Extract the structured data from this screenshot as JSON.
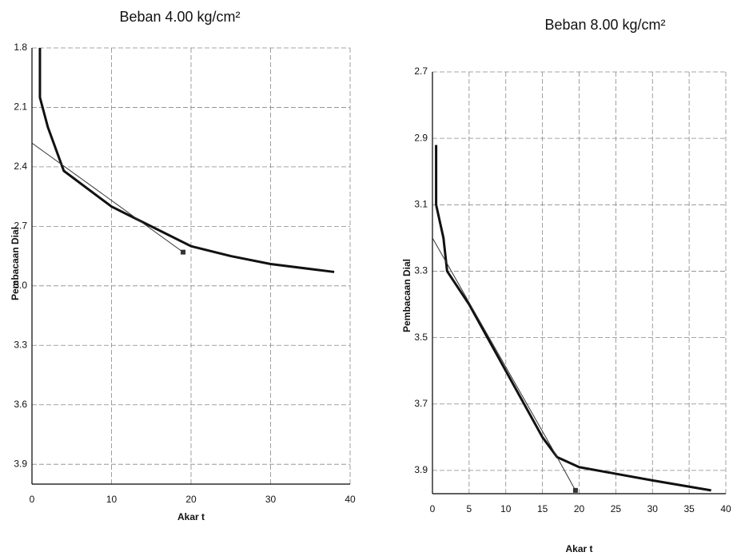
{
  "chart_data": [
    {
      "type": "line",
      "title": "Beban 4.00 kg/cm²",
      "x_label": "Akar t",
      "y_label": "Pembacaan Dial",
      "xlim": [
        0,
        40
      ],
      "xticks": [
        0,
        10,
        20,
        30,
        40
      ],
      "ylim": [
        1.8,
        4.0
      ],
      "y_inverted": true,
      "yticks": [
        1.8,
        2.1,
        2.4,
        2.7,
        {
          "value": 3,
          "label": "3.0"
        },
        3.3,
        3.6,
        3.9
      ],
      "grid": true,
      "series": [
        {
          "color": "#111111",
          "width": 3,
          "x": [
            1,
            1,
            2,
            4,
            10,
            12,
            15,
            20,
            25,
            30,
            38
          ],
          "values": [
            1.8,
            2.05,
            2.2,
            2.42,
            2.6,
            2.64,
            2.7,
            2.8,
            2.85,
            2.89,
            2.93
          ]
        },
        {
          "color": "#333333",
          "width": 1,
          "end_marker": true,
          "x": [
            0,
            19
          ],
          "values": [
            2.28,
            2.83
          ]
        }
      ]
    },
    {
      "type": "line",
      "title": "Beban 8.00 kg/cm²",
      "x_label": "Akar t",
      "y_label": "Pembacaan Dial",
      "xlim": [
        0,
        40
      ],
      "xticks": [
        0,
        5,
        10,
        15,
        20,
        25,
        30,
        35,
        40
      ],
      "ylim": [
        2.7,
        3.97
      ],
      "y_inverted": true,
      "yticks": [
        2.7,
        2.9,
        3.1,
        3.3,
        3.5,
        3.7,
        3.9
      ],
      "grid": true,
      "series": [
        {
          "color": "#111111",
          "width": 3,
          "x": [
            0.5,
            0.5,
            1,
            1.5,
            2,
            5,
            10,
            15,
            17,
            20,
            25,
            30,
            38
          ],
          "values": [
            2.92,
            3.1,
            3.15,
            3.2,
            3.3,
            3.4,
            3.6,
            3.8,
            3.86,
            3.89,
            3.91,
            3.93,
            3.96
          ]
        },
        {
          "color": "#333333",
          "width": 1,
          "end_marker": true,
          "x": [
            0,
            17,
            19.5
          ],
          "values": [
            3.2,
            3.86,
            3.96
          ]
        }
      ]
    }
  ]
}
